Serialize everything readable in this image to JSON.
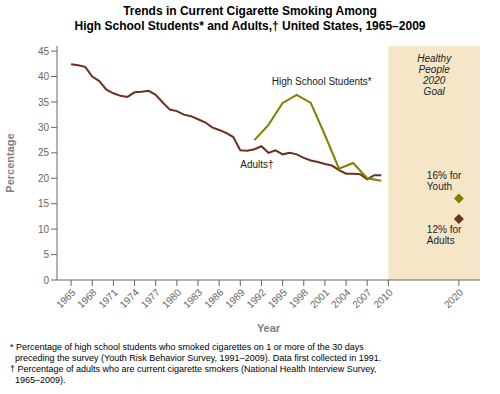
{
  "chart_data": {
    "type": "line",
    "title": "Trends in Current Cigarette Smoking Among\nHigh School Students* and Adults,† United States, 1965–2009",
    "xlabel": "Year",
    "ylabel": "Percentage",
    "xlim": [
      1963,
      2023
    ],
    "ylim": [
      0,
      46
    ],
    "xticks": [
      1965,
      1968,
      1971,
      1974,
      1977,
      1980,
      1983,
      1986,
      1989,
      1992,
      1995,
      1998,
      2001,
      2004,
      2007,
      2010,
      2020
    ],
    "yticks": [
      0,
      5,
      10,
      15,
      20,
      25,
      30,
      35,
      40,
      45
    ],
    "grid": false,
    "series": [
      {
        "name": "Adults†",
        "color": "#6B3020",
        "x": [
          1965,
          1966,
          1967,
          1968,
          1969,
          1970,
          1971,
          1972,
          1973,
          1974,
          1975,
          1976,
          1977,
          1978,
          1979,
          1980,
          1981,
          1982,
          1983,
          1984,
          1985,
          1986,
          1987,
          1988,
          1989,
          1990,
          1991,
          1992,
          1993,
          1994,
          1995,
          1996,
          1997,
          1998,
          1999,
          2000,
          2001,
          2002,
          2003,
          2004,
          2005,
          2006,
          2007,
          2008,
          2009
        ],
        "values": [
          42.4,
          42.2,
          41.9,
          40.0,
          39.1,
          37.4,
          36.7,
          36.2,
          36.0,
          36.9,
          37.0,
          37.2,
          36.4,
          34.9,
          33.5,
          33.2,
          32.5,
          32.2,
          31.6,
          31.0,
          30.0,
          29.5,
          28.9,
          28.1,
          25.5,
          25.4,
          25.7,
          26.3,
          25.0,
          25.5,
          24.7,
          25.0,
          24.7,
          24.0,
          23.5,
          23.2,
          22.8,
          22.5,
          21.6,
          20.9,
          20.9,
          20.8,
          19.8,
          20.6,
          20.6
        ]
      },
      {
        "name": "High School Students*",
        "color": "#808000",
        "x": [
          1991,
          1993,
          1995,
          1997,
          1999,
          2001,
          2003,
          2005,
          2007,
          2009
        ],
        "values": [
          27.5,
          30.5,
          34.8,
          36.4,
          34.8,
          28.5,
          21.9,
          23.0,
          20.0,
          19.5
        ]
      },
      {
        "name": "16% for\nYouth",
        "type": "scatter",
        "marker": "diamond",
        "color": "#808000",
        "x": [
          2020
        ],
        "values": [
          16
        ]
      },
      {
        "name": "12% for\nAdults",
        "type": "scatter",
        "marker": "diamond",
        "color": "#6B3020",
        "x": [
          2020
        ],
        "values": [
          12
        ]
      }
    ],
    "shaded_region": {
      "x": [
        2010,
        2023
      ],
      "color": "#F5E6C8",
      "label": "Healthy\nPeople\n2020\nGoal"
    },
    "footnotes": [
      "* Percentage of high school students who smoked cigarettes on 1 or more of the 30 days",
      "  preceding the survey (Youth Risk Behavior Survey, 1991–2009). Data first collected in 1991.",
      "† Percentage of adults who are current cigarette smokers (National Health Interview Survey,",
      "  1965–2009)."
    ]
  }
}
